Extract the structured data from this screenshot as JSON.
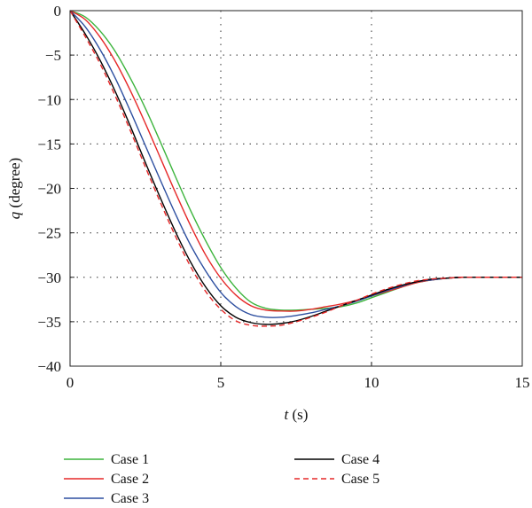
{
  "chart_data": {
    "type": "line",
    "title": "",
    "xlabel_var": "t",
    "xlabel_unit": " (s)",
    "ylabel_var": "q",
    "ylabel_unit": " (degree)",
    "xlim": [
      0,
      15
    ],
    "ylim": [
      -40,
      0
    ],
    "x_ticks": [
      0,
      5,
      10,
      15
    ],
    "y_ticks": [
      0,
      -5,
      -10,
      -15,
      -20,
      -25,
      -30,
      -35,
      -40
    ],
    "grid": true,
    "legend_position": "below",
    "x": [
      0,
      0.5,
      1,
      1.5,
      2,
      2.5,
      3,
      3.5,
      4,
      4.5,
      5,
      5.5,
      6,
      6.5,
      7,
      7.5,
      8,
      8.5,
      9,
      9.5,
      10,
      10.5,
      11,
      11.5,
      12,
      12.5,
      13,
      13.5,
      14,
      14.5,
      15
    ],
    "series": [
      {
        "name": "Case 1",
        "color": "#3cb43c",
        "dash": "",
        "values": [
          0,
          -0.7,
          -2.3,
          -4.6,
          -7.6,
          -11.0,
          -14.8,
          -18.7,
          -22.5,
          -25.9,
          -28.9,
          -31.2,
          -32.8,
          -33.5,
          -33.7,
          -33.7,
          -33.6,
          -33.5,
          -33.3,
          -32.9,
          -32.3,
          -31.7,
          -31.1,
          -30.6,
          -30.3,
          -30.1,
          -30.0,
          -30.0,
          -30.0,
          -30.0,
          -30.0
        ]
      },
      {
        "name": "Case 2",
        "color": "#e62828",
        "dash": "",
        "values": [
          0,
          -1.0,
          -3.0,
          -5.7,
          -9.0,
          -12.7,
          -16.6,
          -20.5,
          -24.2,
          -27.5,
          -30.1,
          -32.0,
          -33.2,
          -33.7,
          -33.8,
          -33.8,
          -33.6,
          -33.3,
          -33.0,
          -32.6,
          -32.1,
          -31.6,
          -31.1,
          -30.6,
          -30.3,
          -30.1,
          -30.0,
          -30.0,
          -30.0,
          -30.0,
          -30.0
        ]
      },
      {
        "name": "Case 3",
        "color": "#2d4fa0",
        "dash": "",
        "values": [
          0,
          -1.8,
          -4.4,
          -7.6,
          -11.3,
          -15.2,
          -19.1,
          -22.9,
          -26.4,
          -29.3,
          -31.7,
          -33.3,
          -34.2,
          -34.5,
          -34.5,
          -34.3,
          -34.0,
          -33.6,
          -33.2,
          -32.7,
          -32.1,
          -31.5,
          -31.0,
          -30.5,
          -30.3,
          -30.1,
          -30.0,
          -30.0,
          -30.0,
          -30.0,
          -30.0
        ]
      },
      {
        "name": "Case 4",
        "color": "#000000",
        "dash": "",
        "values": [
          0,
          -2.6,
          -5.6,
          -9.1,
          -13.0,
          -17.1,
          -21.1,
          -24.9,
          -28.3,
          -31.1,
          -33.2,
          -34.5,
          -35.1,
          -35.3,
          -35.2,
          -34.9,
          -34.4,
          -33.8,
          -33.2,
          -32.6,
          -32.0,
          -31.4,
          -30.9,
          -30.5,
          -30.2,
          -30.1,
          -30.0,
          -30.0,
          -30.0,
          -30.0,
          -30.0
        ]
      },
      {
        "name": "Case 5",
        "color": "#e62828",
        "dash": "6,4",
        "values": [
          0,
          -2.9,
          -6.0,
          -9.6,
          -13.5,
          -17.6,
          -21.6,
          -25.4,
          -28.8,
          -31.6,
          -33.6,
          -34.9,
          -35.4,
          -35.5,
          -35.4,
          -35.0,
          -34.5,
          -33.9,
          -33.2,
          -32.6,
          -31.9,
          -31.3,
          -30.8,
          -30.4,
          -30.2,
          -30.1,
          -30.0,
          -30.0,
          -30.0,
          -30.0,
          -30.0
        ]
      }
    ]
  }
}
